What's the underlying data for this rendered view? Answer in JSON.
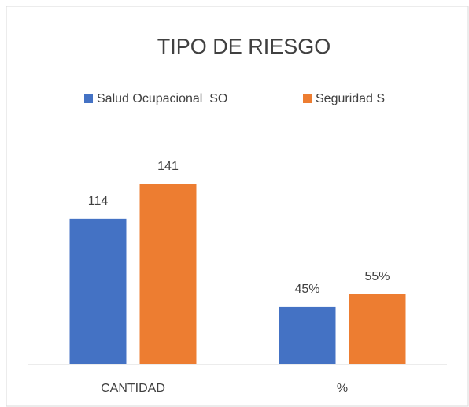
{
  "chart_data": {
    "type": "bar",
    "title": "TIPO DE RIESGO",
    "categories": [
      "CANTIDAD",
      "%"
    ],
    "series": [
      {
        "name": "Salud Ocupacional  SO",
        "color": "#4472c4",
        "values": [
          114,
          45
        ],
        "value_labels": [
          "114",
          "45%"
        ]
      },
      {
        "name": "Seguridad S",
        "color": "#ed7d31",
        "values": [
          141,
          55
        ],
        "value_labels": [
          "141",
          "55%"
        ]
      }
    ],
    "legend": "top"
  }
}
